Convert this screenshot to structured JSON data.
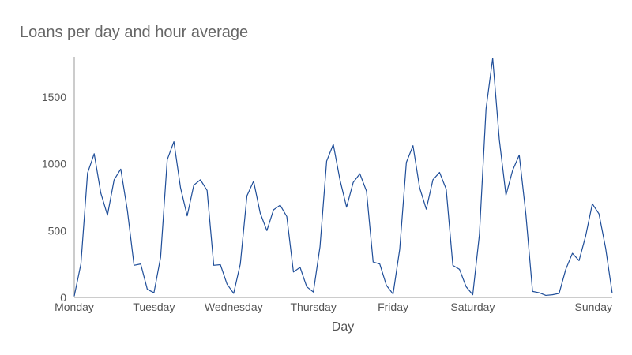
{
  "chart_data": {
    "type": "line",
    "title": "Loans per day and hour average",
    "xlabel": "Day",
    "ylabel": "",
    "ylim": [
      0,
      1800
    ],
    "yticks": [
      "0",
      "500",
      "1000",
      "1500"
    ],
    "xtick_labels": [
      "Monday",
      "Tuesday",
      "Wednesday",
      "Thursday",
      "Friday",
      "Saturday",
      "Sunday"
    ],
    "grid": false,
    "legend": "none",
    "line_color": "#1f4e99",
    "series": [
      {
        "values": [
          10,
          250,
          930,
          1075,
          780,
          615,
          880,
          960,
          650,
          240,
          250,
          60,
          35,
          300,
          1030,
          1165,
          820,
          610,
          840,
          880,
          800,
          240,
          245,
          100,
          30,
          250,
          760,
          870,
          630,
          500,
          655,
          690,
          605,
          190,
          225,
          80,
          40,
          380,
          1020,
          1145,
          880,
          675,
          860,
          925,
          795,
          265,
          250,
          90,
          25,
          360,
          1010,
          1135,
          820,
          660,
          880,
          935,
          810,
          240,
          210,
          80,
          20,
          470,
          1410,
          1790,
          1180,
          765,
          950,
          1065,
          620,
          45,
          35,
          15,
          20,
          30,
          210,
          330,
          275,
          460,
          700,
          625,
          370,
          30
        ]
      }
    ]
  }
}
